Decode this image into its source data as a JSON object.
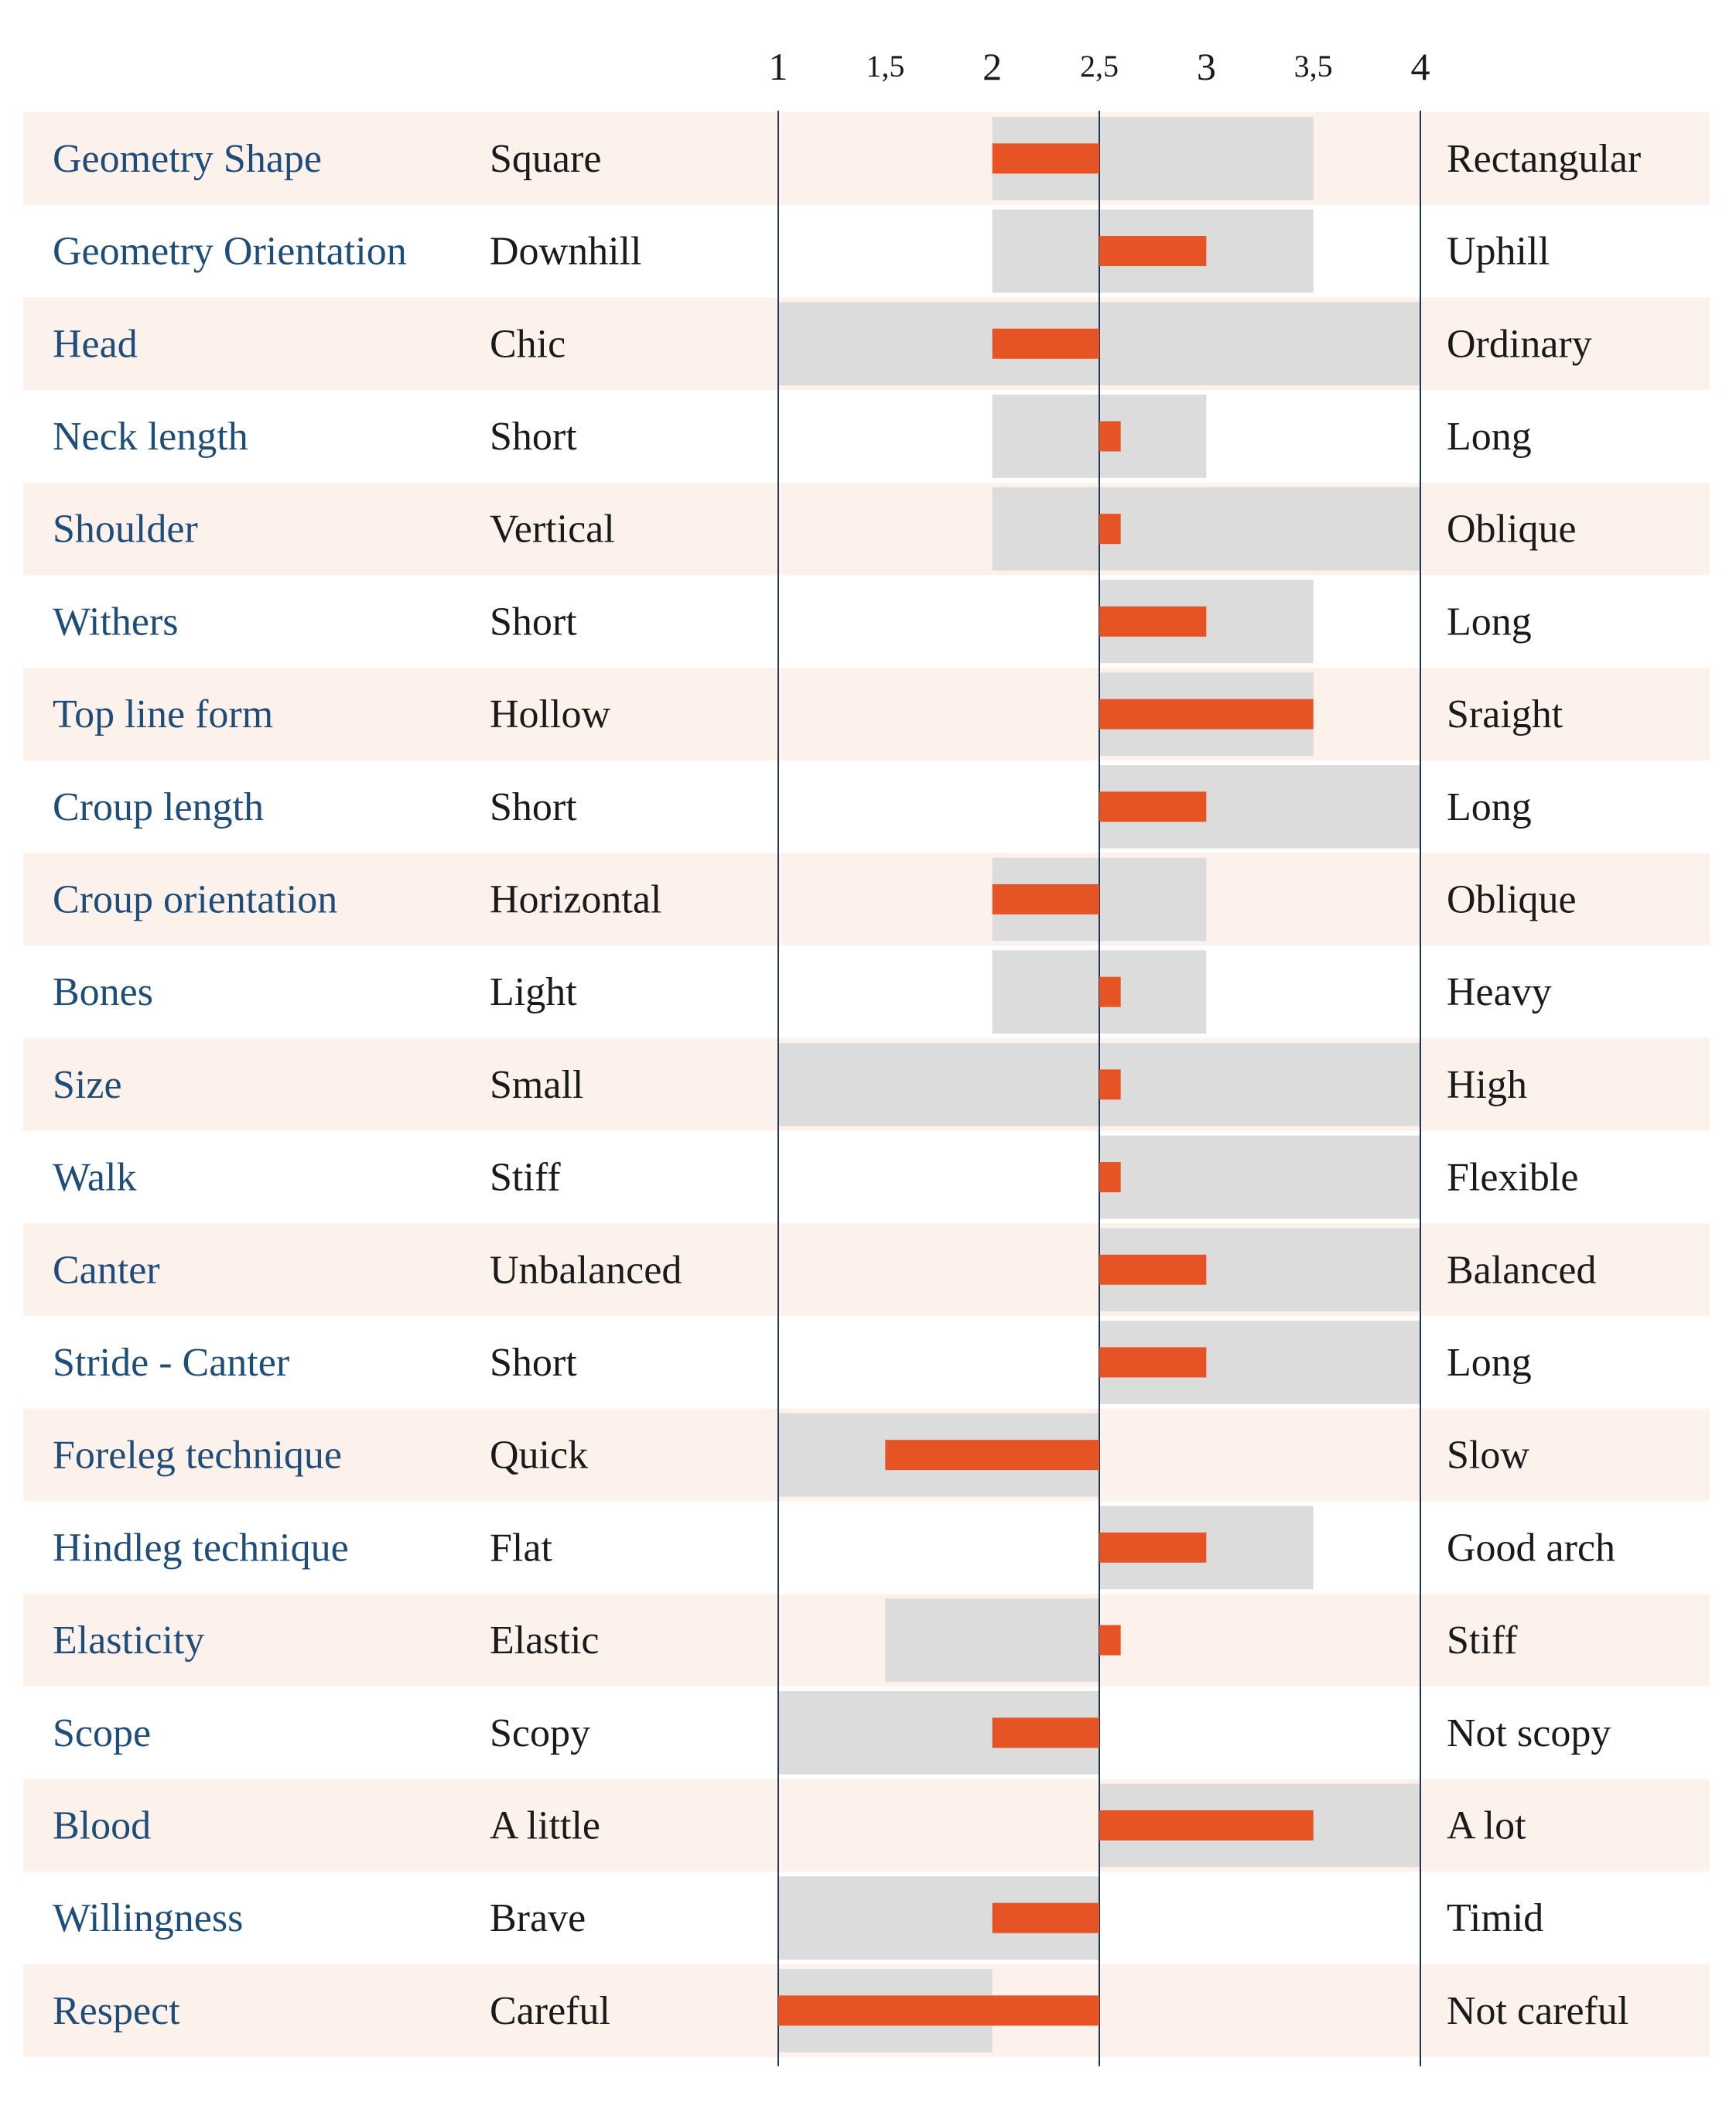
{
  "chart_data": {
    "type": "bar",
    "axis": {
      "ticks": [
        1,
        1.5,
        2,
        2.5,
        3,
        3.5,
        4
      ],
      "tick_labels": [
        "1",
        "1,5",
        "2",
        "2,5",
        "3",
        "3,5",
        "4"
      ],
      "xlim": [
        1,
        4
      ],
      "center": 2.5
    },
    "colors": {
      "stripe": "#fdf1ec",
      "range": "#dcdcdc",
      "value": "#e65425",
      "trait_text": "#1f4d7a",
      "text": "#1a1a1a",
      "axis_line": "#1f3554"
    },
    "rows": [
      {
        "trait": "Geometry Shape",
        "low": "Square",
        "high": "Rectangular",
        "range": [
          2,
          3.5
        ],
        "value": 2
      },
      {
        "trait": "Geometry Orientation",
        "low": "Downhill",
        "high": "Uphill",
        "range": [
          2,
          3.5
        ],
        "value": 3
      },
      {
        "trait": "Head",
        "low": "Chic",
        "high": "Ordinary",
        "range": [
          1,
          4
        ],
        "value": 2
      },
      {
        "trait": "Neck length",
        "low": "Short",
        "high": "Long",
        "range": [
          2,
          3
        ],
        "value": 2.6
      },
      {
        "trait": "Shoulder",
        "low": "Vertical",
        "high": "Oblique",
        "range": [
          2,
          4
        ],
        "value": 2.6
      },
      {
        "trait": "Withers",
        "low": "Short",
        "high": "Long",
        "range": [
          2.5,
          3.5
        ],
        "value": 3
      },
      {
        "trait": "Top line form",
        "low": "Hollow",
        "high": "Sraight",
        "range": [
          2.5,
          3.5
        ],
        "value": 3.5
      },
      {
        "trait": "Croup length",
        "low": "Short",
        "high": "Long",
        "range": [
          2.5,
          4
        ],
        "value": 3
      },
      {
        "trait": "Croup orientation",
        "low": "Horizontal",
        "high": "Oblique",
        "range": [
          2,
          3
        ],
        "value": 2
      },
      {
        "trait": "Bones",
        "low": "Light",
        "high": "Heavy",
        "range": [
          2,
          3
        ],
        "value": 2.6
      },
      {
        "trait": "Size",
        "low": "Small",
        "high": "High",
        "range": [
          1,
          4
        ],
        "value": 2.6
      },
      {
        "trait": "Walk",
        "low": "Stiff",
        "high": "Flexible",
        "range": [
          2.5,
          4
        ],
        "value": 2.6
      },
      {
        "trait": "Canter",
        "low": "Unbalanced",
        "high": "Balanced",
        "range": [
          2.5,
          4
        ],
        "value": 3
      },
      {
        "trait": "Stride - Canter",
        "low": "Short",
        "high": "Long",
        "range": [
          2.5,
          4
        ],
        "value": 3
      },
      {
        "trait": "Foreleg technique",
        "low": "Quick",
        "high": "Slow",
        "range": [
          1,
          2.5
        ],
        "value": 1.5
      },
      {
        "trait": "Hindleg technique",
        "low": "Flat",
        "high": "Good arch",
        "range": [
          2.5,
          3.5
        ],
        "value": 3
      },
      {
        "trait": "Elasticity",
        "low": "Elastic",
        "high": "Stiff",
        "range": [
          1.5,
          2.5
        ],
        "value": 2.6
      },
      {
        "trait": "Scope",
        "low": "Scopy",
        "high": "Not scopy",
        "range": [
          1,
          2.5
        ],
        "value": 2
      },
      {
        "trait": "Blood",
        "low": "A little",
        "high": "A lot",
        "range": [
          2.5,
          4
        ],
        "value": 3.5
      },
      {
        "trait": "Willingness",
        "low": "Brave",
        "high": "Timid",
        "range": [
          1,
          2.5
        ],
        "value": 2
      },
      {
        "trait": "Respect",
        "low": "Careful",
        "high": "Not careful",
        "range": [
          1,
          2
        ],
        "value": 1
      }
    ]
  }
}
